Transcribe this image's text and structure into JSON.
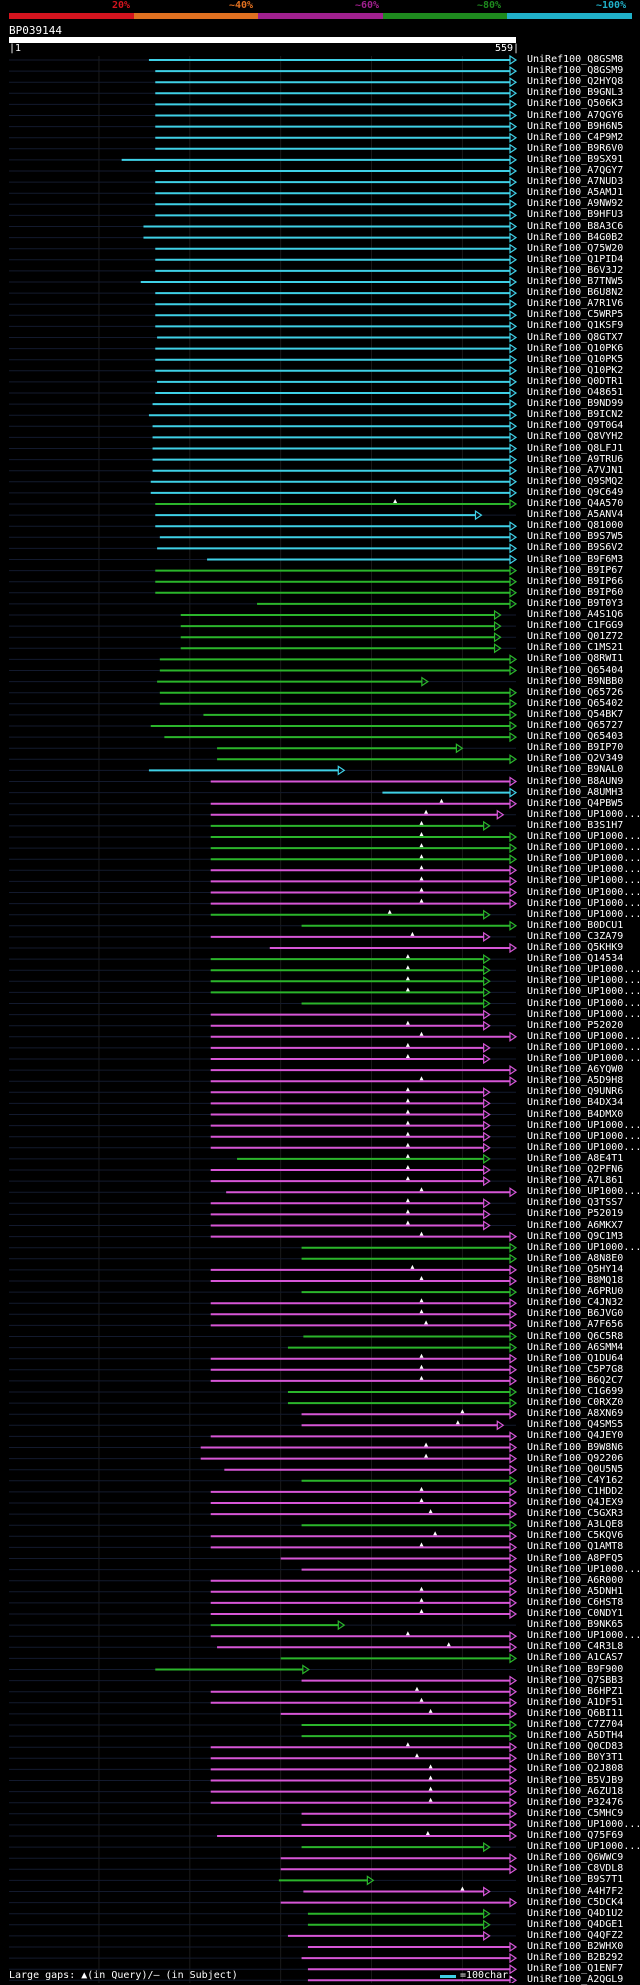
{
  "header": {
    "percent_marks": [
      "20%",
      "~40%",
      "~60%",
      "~80%",
      "~100%"
    ],
    "query_id": "BP039144",
    "ruler_start": "|1",
    "ruler_end": "559|"
  },
  "colors": {
    "identity_bands": [
      "#d4141e",
      "#e07020",
      "#a0208e",
      "#1e8a1e",
      "#20b0c8"
    ],
    "cyan": "#3fd0e6",
    "magenta": "#d656d6",
    "green": "#2bb52b",
    "grid": "#1a1a1a",
    "text": "#ffffff"
  },
  "query_length": 559,
  "hits": [
    {
      "id": "UniRef100_Q8GSM8",
      "c": "cyan",
      "s": 155,
      "e": 559
    },
    {
      "id": "UniRef100_Q8GSM9",
      "c": "cyan",
      "s": 162,
      "e": 559
    },
    {
      "id": "UniRef100_Q2HYQ8",
      "c": "cyan",
      "s": 162,
      "e": 559
    },
    {
      "id": "UniRef100_B9GNL3",
      "c": "cyan",
      "s": 162,
      "e": 559
    },
    {
      "id": "UniRef100_Q506K3",
      "c": "cyan",
      "s": 162,
      "e": 559
    },
    {
      "id": "UniRef100_A7QGY6",
      "c": "cyan",
      "s": 162,
      "e": 559
    },
    {
      "id": "UniRef100_B9H6N5",
      "c": "cyan",
      "s": 162,
      "e": 559
    },
    {
      "id": "UniRef100_C4P9M2",
      "c": "cyan",
      "s": 162,
      "e": 559
    },
    {
      "id": "UniRef100_B9R6V0",
      "c": "cyan",
      "s": 162,
      "e": 559
    },
    {
      "id": "UniRef100_B9SX91",
      "c": "cyan",
      "s": 125,
      "e": 559
    },
    {
      "id": "UniRef100_A7QGY7",
      "c": "cyan",
      "s": 162,
      "e": 559
    },
    {
      "id": "UniRef100_A7NUD3",
      "c": "cyan",
      "s": 162,
      "e": 559
    },
    {
      "id": "UniRef100_A5AMJ1",
      "c": "cyan",
      "s": 162,
      "e": 559
    },
    {
      "id": "UniRef100_A9NW92",
      "c": "cyan",
      "s": 162,
      "e": 559
    },
    {
      "id": "UniRef100_B9HFU3",
      "c": "cyan",
      "s": 162,
      "e": 559
    },
    {
      "id": "UniRef100_B8A3C6",
      "c": "cyan",
      "s": 149,
      "e": 559
    },
    {
      "id": "UniRef100_B4G0B2",
      "c": "cyan",
      "s": 149,
      "e": 559
    },
    {
      "id": "UniRef100_Q75W20",
      "c": "cyan",
      "s": 162,
      "e": 559
    },
    {
      "id": "UniRef100_Q1PID4",
      "c": "cyan",
      "s": 162,
      "e": 559
    },
    {
      "id": "UniRef100_B6V3J2",
      "c": "cyan",
      "s": 162,
      "e": 559
    },
    {
      "id": "UniRef100_B7TNW5",
      "c": "cyan",
      "s": 146,
      "e": 559
    },
    {
      "id": "UniRef100_B6U8N2",
      "c": "cyan",
      "s": 162,
      "e": 559
    },
    {
      "id": "UniRef100_A7R1V6",
      "c": "cyan",
      "s": 162,
      "e": 559
    },
    {
      "id": "UniRef100_C5WRP5",
      "c": "cyan",
      "s": 162,
      "e": 559
    },
    {
      "id": "UniRef100_Q1KSF9",
      "c": "cyan",
      "s": 162,
      "e": 559
    },
    {
      "id": "UniRef100_Q8GTX7",
      "c": "cyan",
      "s": 164,
      "e": 559
    },
    {
      "id": "UniRef100_Q10PK6",
      "c": "cyan",
      "s": 162,
      "e": 559
    },
    {
      "id": "UniRef100_Q10PK5",
      "c": "cyan",
      "s": 162,
      "e": 559
    },
    {
      "id": "UniRef100_Q10PK2",
      "c": "cyan",
      "s": 162,
      "e": 559
    },
    {
      "id": "UniRef100_Q0DTR1",
      "c": "cyan",
      "s": 164,
      "e": 559
    },
    {
      "id": "UniRef100_O48651",
      "c": "cyan",
      "s": 162,
      "e": 559
    },
    {
      "id": "UniRef100_B9ND99",
      "c": "cyan",
      "s": 159,
      "e": 559
    },
    {
      "id": "UniRef100_B9ICN2",
      "c": "cyan",
      "s": 155,
      "e": 559
    },
    {
      "id": "UniRef100_Q9T0G4",
      "c": "cyan",
      "s": 159,
      "e": 559
    },
    {
      "id": "UniRef100_Q8VYH2",
      "c": "cyan",
      "s": 159,
      "e": 559
    },
    {
      "id": "UniRef100_Q8LFJ1",
      "c": "cyan",
      "s": 159,
      "e": 559
    },
    {
      "id": "UniRef100_A9TRU6",
      "c": "cyan",
      "s": 159,
      "e": 559
    },
    {
      "id": "UniRef100_A7VJN1",
      "c": "cyan",
      "s": 159,
      "e": 559
    },
    {
      "id": "UniRef100_Q9SMQ2",
      "c": "cyan",
      "s": 157,
      "e": 559
    },
    {
      "id": "UniRef100_Q9C649",
      "c": "cyan",
      "s": 157,
      "e": 559
    },
    {
      "id": "UniRef100_Q4A570",
      "c": "green",
      "s": 162,
      "e": 559,
      "gap": 426
    },
    {
      "id": "UniRef100_A5ANV4",
      "c": "cyan",
      "s": 162,
      "e": 521
    },
    {
      "id": "UniRef100_Q81000",
      "c": "cyan",
      "s": 162,
      "e": 559
    },
    {
      "id": "UniRef100_B9S7W5",
      "c": "cyan",
      "s": 167,
      "e": 559
    },
    {
      "id": "UniRef100_B9S6V2",
      "c": "cyan",
      "s": 164,
      "e": 559
    },
    {
      "id": "UniRef100_B9F6M3",
      "c": "cyan",
      "s": 219,
      "e": 559
    },
    {
      "id": "UniRef100_B9IP67",
      "c": "green",
      "s": 162,
      "e": 559
    },
    {
      "id": "UniRef100_B9IP66",
      "c": "green",
      "s": 162,
      "e": 559
    },
    {
      "id": "UniRef100_B9IP60",
      "c": "green",
      "s": 162,
      "e": 559
    },
    {
      "id": "UniRef100_B9T0Y3",
      "c": "green",
      "s": 274,
      "e": 559
    },
    {
      "id": "UniRef100_A4S1Q6",
      "c": "green",
      "s": 190,
      "e": 542
    },
    {
      "id": "UniRef100_C1FGG9",
      "c": "green",
      "s": 190,
      "e": 542
    },
    {
      "id": "UniRef100_Q01Z72",
      "c": "green",
      "s": 190,
      "e": 542
    },
    {
      "id": "UniRef100_C1MS21",
      "c": "green",
      "s": 190,
      "e": 542
    },
    {
      "id": "UniRef100_Q8RWI1",
      "c": "green",
      "s": 167,
      "e": 559
    },
    {
      "id": "UniRef100_Q65404",
      "c": "green",
      "s": 167,
      "e": 559
    },
    {
      "id": "UniRef100_B9NBB0",
      "c": "green",
      "s": 164,
      "e": 462
    },
    {
      "id": "UniRef100_Q65726",
      "c": "green",
      "s": 167,
      "e": 559
    },
    {
      "id": "UniRef100_Q65402",
      "c": "green",
      "s": 167,
      "e": 559
    },
    {
      "id": "UniRef100_Q54BK7",
      "c": "green",
      "s": 215,
      "e": 559
    },
    {
      "id": "UniRef100_Q65727",
      "c": "green",
      "s": 157,
      "e": 559
    },
    {
      "id": "UniRef100_Q65403",
      "c": "green",
      "s": 172,
      "e": 559
    },
    {
      "id": "UniRef100_B9IP70",
      "c": "green",
      "s": 230,
      "e": 500
    },
    {
      "id": "UniRef100_Q2V349",
      "c": "green",
      "s": 230,
      "e": 559
    },
    {
      "id": "UniRef100_B9NAL0",
      "c": "cyan",
      "s": 155,
      "e": 370
    },
    {
      "id": "UniRef100_B8AUN9",
      "c": "magenta",
      "s": 223,
      "e": 559
    },
    {
      "id": "UniRef100_A8UMH3",
      "c": "cyan",
      "s": 412,
      "e": 559
    },
    {
      "id": "UniRef100_Q4PBW5",
      "c": "magenta",
      "s": 223,
      "e": 559,
      "gap": 477
    },
    {
      "id": "UniRef100_UP1000...",
      "c": "magenta",
      "s": 223,
      "e": 545,
      "gap": 460
    },
    {
      "id": "UniRef100_B3S1H7",
      "c": "green",
      "s": 223,
      "e": 530,
      "gap": 455
    },
    {
      "id": "UniRef100_UP1000...",
      "c": "green",
      "s": 223,
      "e": 559,
      "gap": 455
    },
    {
      "id": "UniRef100_UP1000...",
      "c": "green",
      "s": 223,
      "e": 559,
      "gap": 455
    },
    {
      "id": "UniRef100_UP1000...",
      "c": "green",
      "s": 223,
      "e": 559,
      "gap": 455
    },
    {
      "id": "UniRef100_UP1000...",
      "c": "magenta",
      "s": 223,
      "e": 559,
      "gap": 455
    },
    {
      "id": "UniRef100_UP1000...",
      "c": "magenta",
      "s": 223,
      "e": 559,
      "gap": 455
    },
    {
      "id": "UniRef100_UP1000...",
      "c": "magenta",
      "s": 223,
      "e": 559,
      "gap": 455
    },
    {
      "id": "UniRef100_UP1000...",
      "c": "magenta",
      "s": 223,
      "e": 559,
      "gap": 455
    },
    {
      "id": "UniRef100_UP1000...",
      "c": "green",
      "s": 223,
      "e": 530,
      "gap": 420
    },
    {
      "id": "UniRef100_B0DCU1",
      "c": "green",
      "s": 323,
      "e": 559
    },
    {
      "id": "UniRef100_C3ZA79",
      "c": "magenta",
      "s": 223,
      "e": 530,
      "gap": 445
    },
    {
      "id": "UniRef100_Q5KHK9",
      "c": "magenta",
      "s": 288,
      "e": 559
    },
    {
      "id": "UniRef100_Q14534",
      "c": "green",
      "s": 223,
      "e": 530,
      "gap": 440
    },
    {
      "id": "UniRef100_UP1000...",
      "c": "green",
      "s": 223,
      "e": 530,
      "gap": 440
    },
    {
      "id": "UniRef100_UP1000...",
      "c": "green",
      "s": 223,
      "e": 530,
      "gap": 440
    },
    {
      "id": "UniRef100_UP1000...",
      "c": "green",
      "s": 223,
      "e": 530,
      "gap": 440
    },
    {
      "id": "UniRef100_UP1000...",
      "c": "green",
      "s": 323,
      "e": 530
    },
    {
      "id": "UniRef100_UP1000...",
      "c": "magenta",
      "s": 223,
      "e": 530
    },
    {
      "id": "UniRef100_P52020",
      "c": "magenta",
      "s": 223,
      "e": 530,
      "gap": 440
    },
    {
      "id": "UniRef100_UP1000...",
      "c": "magenta",
      "s": 223,
      "e": 559,
      "gap": 455
    },
    {
      "id": "UniRef100_UP1000...",
      "c": "magenta",
      "s": 223,
      "e": 530,
      "gap": 440
    },
    {
      "id": "UniRef100_UP1000...",
      "c": "magenta",
      "s": 223,
      "e": 530,
      "gap": 440
    },
    {
      "id": "UniRef100_A6YQW0",
      "c": "magenta",
      "s": 223,
      "e": 559
    },
    {
      "id": "UniRef100_A5D9H8",
      "c": "magenta",
      "s": 223,
      "e": 559,
      "gap": 455
    },
    {
      "id": "UniRef100_Q9UNR6",
      "c": "magenta",
      "s": 223,
      "e": 530,
      "gap": 440
    },
    {
      "id": "UniRef100_B4DX34",
      "c": "magenta",
      "s": 223,
      "e": 530,
      "gap": 440
    },
    {
      "id": "UniRef100_B4DMX0",
      "c": "magenta",
      "s": 223,
      "e": 530,
      "gap": 440
    },
    {
      "id": "UniRef100_UP1000...",
      "c": "magenta",
      "s": 223,
      "e": 530,
      "gap": 440
    },
    {
      "id": "UniRef100_UP1000...",
      "c": "magenta",
      "s": 223,
      "e": 530,
      "gap": 440
    },
    {
      "id": "UniRef100_UP1000...",
      "c": "magenta",
      "s": 223,
      "e": 530,
      "gap": 440
    },
    {
      "id": "UniRef100_A8E4T1",
      "c": "green",
      "s": 252,
      "e": 530,
      "gap": 440
    },
    {
      "id": "UniRef100_Q2PFN6",
      "c": "magenta",
      "s": 223,
      "e": 530,
      "gap": 440
    },
    {
      "id": "UniRef100_A7L861",
      "c": "magenta",
      "s": 223,
      "e": 530,
      "gap": 440
    },
    {
      "id": "UniRef100_UP1000...",
      "c": "magenta",
      "s": 240,
      "e": 559,
      "gap": 455
    },
    {
      "id": "UniRef100_Q3TSS7",
      "c": "magenta",
      "s": 223,
      "e": 530,
      "gap": 440
    },
    {
      "id": "UniRef100_P52019",
      "c": "magenta",
      "s": 223,
      "e": 530,
      "gap": 440
    },
    {
      "id": "UniRef100_A6MKX7",
      "c": "magenta",
      "s": 223,
      "e": 530,
      "gap": 440
    },
    {
      "id": "UniRef100_Q9C1M3",
      "c": "magenta",
      "s": 223,
      "e": 559,
      "gap": 455
    },
    {
      "id": "UniRef100_UP1000...",
      "c": "green",
      "s": 323,
      "e": 559
    },
    {
      "id": "UniRef100_A8N8E0",
      "c": "green",
      "s": 323,
      "e": 559
    },
    {
      "id": "UniRef100_Q5HY14",
      "c": "magenta",
      "s": 223,
      "e": 559,
      "gap": 445
    },
    {
      "id": "UniRef100_B8MQ18",
      "c": "magenta",
      "s": 223,
      "e": 559,
      "gap": 455
    },
    {
      "id": "UniRef100_A6PRU0",
      "c": "green",
      "s": 323,
      "e": 559
    },
    {
      "id": "UniRef100_C4JN32",
      "c": "magenta",
      "s": 223,
      "e": 559,
      "gap": 455
    },
    {
      "id": "UniRef100_B6JVG0",
      "c": "magenta",
      "s": 223,
      "e": 559,
      "gap": 455
    },
    {
      "id": "UniRef100_A7F656",
      "c": "magenta",
      "s": 223,
      "e": 559,
      "gap": 460
    },
    {
      "id": "UniRef100_Q6C5R8",
      "c": "green",
      "s": 325,
      "e": 559
    },
    {
      "id": "UniRef100_A6SMM4",
      "c": "green",
      "s": 308,
      "e": 559
    },
    {
      "id": "UniRef100_Q1DU64",
      "c": "magenta",
      "s": 223,
      "e": 559,
      "gap": 455
    },
    {
      "id": "UniRef100_C5P7G8",
      "c": "magenta",
      "s": 223,
      "e": 559,
      "gap": 455
    },
    {
      "id": "UniRef100_B6Q2C7",
      "c": "magenta",
      "s": 223,
      "e": 559,
      "gap": 455
    },
    {
      "id": "UniRef100_C1G699",
      "c": "green",
      "s": 308,
      "e": 559
    },
    {
      "id": "UniRef100_C0RXZ0",
      "c": "green",
      "s": 308,
      "e": 559
    },
    {
      "id": "UniRef100_A8XN69",
      "c": "magenta",
      "s": 323,
      "e": 559,
      "gap": 500
    },
    {
      "id": "UniRef100_Q4SMS5",
      "c": "magenta",
      "s": 323,
      "e": 545,
      "gap": 495
    },
    {
      "id": "UniRef100_Q4JEY0",
      "c": "magenta",
      "s": 223,
      "e": 559
    },
    {
      "id": "UniRef100_B9W8N6",
      "c": "magenta",
      "s": 212,
      "e": 559,
      "gap": 460
    },
    {
      "id": "UniRef100_Q92206",
      "c": "magenta",
      "s": 212,
      "e": 559,
      "gap": 460
    },
    {
      "id": "UniRef100_Q0U5N5",
      "c": "magenta",
      "s": 238,
      "e": 559
    },
    {
      "id": "UniRef100_C4Y162",
      "c": "green",
      "s": 323,
      "e": 559
    },
    {
      "id": "UniRef100_C1HDD2",
      "c": "magenta",
      "s": 223,
      "e": 559,
      "gap": 455
    },
    {
      "id": "UniRef100_Q4JEX9",
      "c": "magenta",
      "s": 223,
      "e": 559,
      "gap": 455
    },
    {
      "id": "UniRef100_C5GXR3",
      "c": "magenta",
      "s": 223,
      "e": 559,
      "gap": 465
    },
    {
      "id": "UniRef100_A3LQE8",
      "c": "green",
      "s": 323,
      "e": 559
    },
    {
      "id": "UniRef100_C5KQV6",
      "c": "magenta",
      "s": 223,
      "e": 559,
      "gap": 470
    },
    {
      "id": "UniRef100_Q1AMT8",
      "c": "magenta",
      "s": 223,
      "e": 559,
      "gap": 455
    },
    {
      "id": "UniRef100_A8PFQ5",
      "c": "magenta",
      "s": 300,
      "e": 559
    },
    {
      "id": "UniRef100_UP1000...",
      "c": "magenta",
      "s": 323,
      "e": 559
    },
    {
      "id": "UniRef100_A6R000",
      "c": "magenta",
      "s": 223,
      "e": 559
    },
    {
      "id": "UniRef100_A5DNH1",
      "c": "magenta",
      "s": 223,
      "e": 559,
      "gap": 455
    },
    {
      "id": "UniRef100_C6HST8",
      "c": "magenta",
      "s": 223,
      "e": 559,
      "gap": 455
    },
    {
      "id": "UniRef100_C0NDY1",
      "c": "magenta",
      "s": 223,
      "e": 559,
      "gap": 455
    },
    {
      "id": "UniRef100_B9NK65",
      "c": "green",
      "s": 223,
      "e": 370
    },
    {
      "id": "UniRef100_UP1000...",
      "c": "magenta",
      "s": 223,
      "e": 559,
      "gap": 440
    },
    {
      "id": "UniRef100_C4R3L8",
      "c": "magenta",
      "s": 230,
      "e": 559,
      "gap": 485
    },
    {
      "id": "UniRef100_A1CAS7",
      "c": "green",
      "s": 300,
      "e": 559
    },
    {
      "id": "UniRef100_B9F900",
      "c": "green",
      "s": 162,
      "e": 331
    },
    {
      "id": "UniRef100_Q7SBB3",
      "c": "magenta",
      "s": 323,
      "e": 559
    },
    {
      "id": "UniRef100_B6HPZ1",
      "c": "magenta",
      "s": 223,
      "e": 559,
      "gap": 450
    },
    {
      "id": "UniRef100_A1DF51",
      "c": "magenta",
      "s": 223,
      "e": 559,
      "gap": 455
    },
    {
      "id": "UniRef100_Q6BI11",
      "c": "magenta",
      "s": 300,
      "e": 559,
      "gap": 465
    },
    {
      "id": "UniRef100_C7Z704",
      "c": "green",
      "s": 323,
      "e": 559
    },
    {
      "id": "UniRef100_A5DTH4",
      "c": "green",
      "s": 323,
      "e": 559
    },
    {
      "id": "UniRef100_Q0CD83",
      "c": "magenta",
      "s": 223,
      "e": 559,
      "gap": 440
    },
    {
      "id": "UniRef100_B0Y3T1",
      "c": "magenta",
      "s": 223,
      "e": 559,
      "gap": 450
    },
    {
      "id": "UniRef100_Q2J808",
      "c": "magenta",
      "s": 223,
      "e": 559,
      "gap": 465
    },
    {
      "id": "UniRef100_B5VJB9",
      "c": "magenta",
      "s": 223,
      "e": 559,
      "gap": 465
    },
    {
      "id": "UniRef100_A6ZU18",
      "c": "magenta",
      "s": 223,
      "e": 559,
      "gap": 465
    },
    {
      "id": "UniRef100_P32476",
      "c": "magenta",
      "s": 223,
      "e": 559,
      "gap": 465
    },
    {
      "id": "UniRef100_C5MHC9",
      "c": "magenta",
      "s": 323,
      "e": 559
    },
    {
      "id": "UniRef100_UP1000...",
      "c": "magenta",
      "s": 323,
      "e": 559
    },
    {
      "id": "UniRef100_Q75F69",
      "c": "magenta",
      "s": 230,
      "e": 559,
      "gap": 462
    },
    {
      "id": "UniRef100_UP1000...",
      "c": "green",
      "s": 323,
      "e": 530
    },
    {
      "id": "UniRef100_Q6WWC9",
      "c": "magenta",
      "s": 300,
      "e": 559
    },
    {
      "id": "UniRef100_C8VDL8",
      "c": "magenta",
      "s": 300,
      "e": 559
    },
    {
      "id": "UniRef100_B9S7T1",
      "c": "green",
      "s": 298,
      "e": 402
    },
    {
      "id": "UniRef100_A4H7F2",
      "c": "magenta",
      "s": 325,
      "e": 530,
      "gap": 500
    },
    {
      "id": "UniRef100_C5DCK4",
      "c": "magenta",
      "s": 300,
      "e": 559
    },
    {
      "id": "UniRef100_Q4D1U2",
      "c": "green",
      "s": 330,
      "e": 530
    },
    {
      "id": "UniRef100_Q4DGE1",
      "c": "green",
      "s": 330,
      "e": 530
    },
    {
      "id": "UniRef100_Q4QFZ2",
      "c": "magenta",
      "s": 308,
      "e": 530
    },
    {
      "id": "UniRef100_B2WHX0",
      "c": "magenta",
      "s": 330,
      "e": 559
    },
    {
      "id": "UniRef100_B2B292",
      "c": "magenta",
      "s": 323,
      "e": 559
    },
    {
      "id": "UniRef100_Q1ENF7",
      "c": "magenta",
      "s": 330,
      "e": 559
    },
    {
      "id": "UniRef100_A2QGL9",
      "c": "magenta",
      "s": 330,
      "e": 559
    }
  ],
  "footer": {
    "gaps_text": "Large gaps: ▲(in Query)/– (in Subject)",
    "legend_text": "=100char."
  }
}
